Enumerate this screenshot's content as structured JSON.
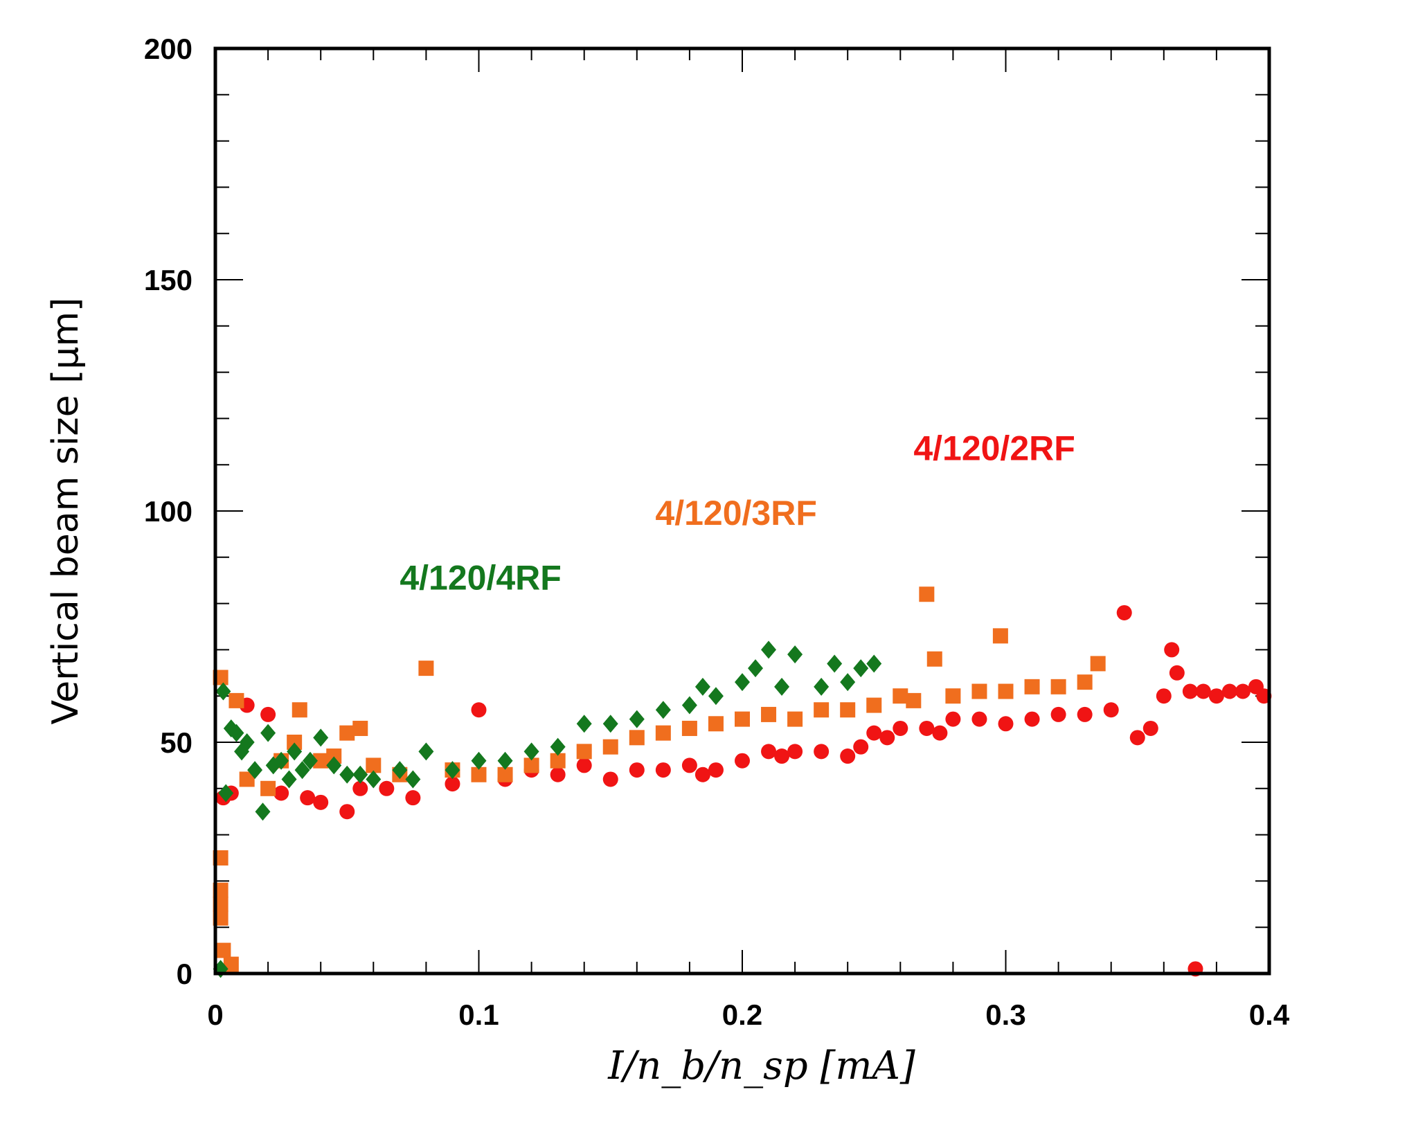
{
  "chart_data": {
    "type": "scatter",
    "title": "",
    "xlabel": "I/n_b/n_sp   [mA]",
    "ylabel": "Vertical beam size [µm]",
    "xlim": [
      0,
      0.4
    ],
    "ylim": [
      0,
      200
    ],
    "x_ticks": [
      "0",
      "0.1",
      "0.2",
      "0.3",
      "0.4"
    ],
    "y_ticks": [
      "0",
      "50",
      "100",
      "150",
      "200"
    ],
    "grid": false,
    "series": [
      {
        "name": "4/120/2RF",
        "color": "#f01414",
        "marker": "circle",
        "label_pos": [
          0.265,
          111
        ],
        "points": [
          [
            0.003,
            38
          ],
          [
            0.006,
            39
          ],
          [
            0.012,
            58
          ],
          [
            0.02,
            56
          ],
          [
            0.025,
            39
          ],
          [
            0.035,
            38
          ],
          [
            0.04,
            37
          ],
          [
            0.05,
            35
          ],
          [
            0.055,
            40
          ],
          [
            0.065,
            40
          ],
          [
            0.075,
            38
          ],
          [
            0.09,
            41
          ],
          [
            0.1,
            57
          ],
          [
            0.11,
            42
          ],
          [
            0.12,
            44
          ],
          [
            0.13,
            43
          ],
          [
            0.14,
            45
          ],
          [
            0.15,
            42
          ],
          [
            0.16,
            44
          ],
          [
            0.17,
            44
          ],
          [
            0.18,
            45
          ],
          [
            0.185,
            43
          ],
          [
            0.19,
            44
          ],
          [
            0.2,
            46
          ],
          [
            0.21,
            48
          ],
          [
            0.215,
            47
          ],
          [
            0.22,
            48
          ],
          [
            0.23,
            48
          ],
          [
            0.24,
            47
          ],
          [
            0.245,
            49
          ],
          [
            0.25,
            52
          ],
          [
            0.255,
            51
          ],
          [
            0.26,
            53
          ],
          [
            0.27,
            53
          ],
          [
            0.275,
            52
          ],
          [
            0.28,
            55
          ],
          [
            0.29,
            55
          ],
          [
            0.3,
            54
          ],
          [
            0.31,
            55
          ],
          [
            0.32,
            56
          ],
          [
            0.33,
            56
          ],
          [
            0.34,
            57
          ],
          [
            0.345,
            78
          ],
          [
            0.35,
            51
          ],
          [
            0.355,
            53
          ],
          [
            0.36,
            60
          ],
          [
            0.363,
            70
          ],
          [
            0.365,
            65
          ],
          [
            0.37,
            61
          ],
          [
            0.375,
            61
          ],
          [
            0.38,
            60
          ],
          [
            0.385,
            61
          ],
          [
            0.39,
            61
          ],
          [
            0.395,
            62
          ],
          [
            0.398,
            60
          ],
          [
            0.372,
            1
          ]
        ]
      },
      {
        "name": "4/120/3RF",
        "color": "#f06e1e",
        "marker": "square",
        "label_pos": [
          0.167,
          97
        ],
        "points": [
          [
            0.002,
            64
          ],
          [
            0.002,
            25
          ],
          [
            0.002,
            18
          ],
          [
            0.002,
            15
          ],
          [
            0.002,
            12
          ],
          [
            0.003,
            5
          ],
          [
            0.006,
            2
          ],
          [
            0.008,
            59
          ],
          [
            0.012,
            42
          ],
          [
            0.02,
            40
          ],
          [
            0.025,
            46
          ],
          [
            0.03,
            50
          ],
          [
            0.032,
            57
          ],
          [
            0.04,
            46
          ],
          [
            0.045,
            47
          ],
          [
            0.05,
            52
          ],
          [
            0.055,
            53
          ],
          [
            0.06,
            45
          ],
          [
            0.07,
            43
          ],
          [
            0.08,
            66
          ],
          [
            0.09,
            44
          ],
          [
            0.1,
            43
          ],
          [
            0.11,
            43
          ],
          [
            0.12,
            45
          ],
          [
            0.13,
            46
          ],
          [
            0.14,
            48
          ],
          [
            0.15,
            49
          ],
          [
            0.16,
            51
          ],
          [
            0.17,
            52
          ],
          [
            0.18,
            53
          ],
          [
            0.19,
            54
          ],
          [
            0.2,
            55
          ],
          [
            0.21,
            56
          ],
          [
            0.22,
            55
          ],
          [
            0.23,
            57
          ],
          [
            0.24,
            57
          ],
          [
            0.25,
            58
          ],
          [
            0.26,
            60
          ],
          [
            0.265,
            59
          ],
          [
            0.27,
            82
          ],
          [
            0.273,
            68
          ],
          [
            0.28,
            60
          ],
          [
            0.29,
            61
          ],
          [
            0.298,
            73
          ],
          [
            0.3,
            61
          ],
          [
            0.31,
            62
          ],
          [
            0.32,
            62
          ],
          [
            0.33,
            63
          ],
          [
            0.335,
            67
          ]
        ]
      },
      {
        "name": "4/120/4RF",
        "color": "#14781e",
        "marker": "diamond",
        "label_pos": [
          0.07,
          83
        ],
        "points": [
          [
            0.002,
            1
          ],
          [
            0.003,
            61
          ],
          [
            0.004,
            39
          ],
          [
            0.006,
            53
          ],
          [
            0.008,
            52
          ],
          [
            0.01,
            48
          ],
          [
            0.012,
            50
          ],
          [
            0.015,
            44
          ],
          [
            0.018,
            35
          ],
          [
            0.02,
            52
          ],
          [
            0.022,
            45
          ],
          [
            0.025,
            46
          ],
          [
            0.028,
            42
          ],
          [
            0.03,
            48
          ],
          [
            0.033,
            44
          ],
          [
            0.036,
            46
          ],
          [
            0.04,
            51
          ],
          [
            0.045,
            45
          ],
          [
            0.05,
            43
          ],
          [
            0.055,
            43
          ],
          [
            0.06,
            42
          ],
          [
            0.07,
            44
          ],
          [
            0.075,
            42
          ],
          [
            0.08,
            48
          ],
          [
            0.09,
            44
          ],
          [
            0.1,
            46
          ],
          [
            0.11,
            46
          ],
          [
            0.12,
            48
          ],
          [
            0.13,
            49
          ],
          [
            0.14,
            54
          ],
          [
            0.15,
            54
          ],
          [
            0.16,
            55
          ],
          [
            0.17,
            57
          ],
          [
            0.18,
            58
          ],
          [
            0.185,
            62
          ],
          [
            0.19,
            60
          ],
          [
            0.2,
            63
          ],
          [
            0.205,
            66
          ],
          [
            0.21,
            70
          ],
          [
            0.215,
            62
          ],
          [
            0.22,
            69
          ],
          [
            0.23,
            62
          ],
          [
            0.235,
            67
          ],
          [
            0.24,
            63
          ],
          [
            0.245,
            66
          ],
          [
            0.25,
            67
          ]
        ]
      }
    ]
  }
}
